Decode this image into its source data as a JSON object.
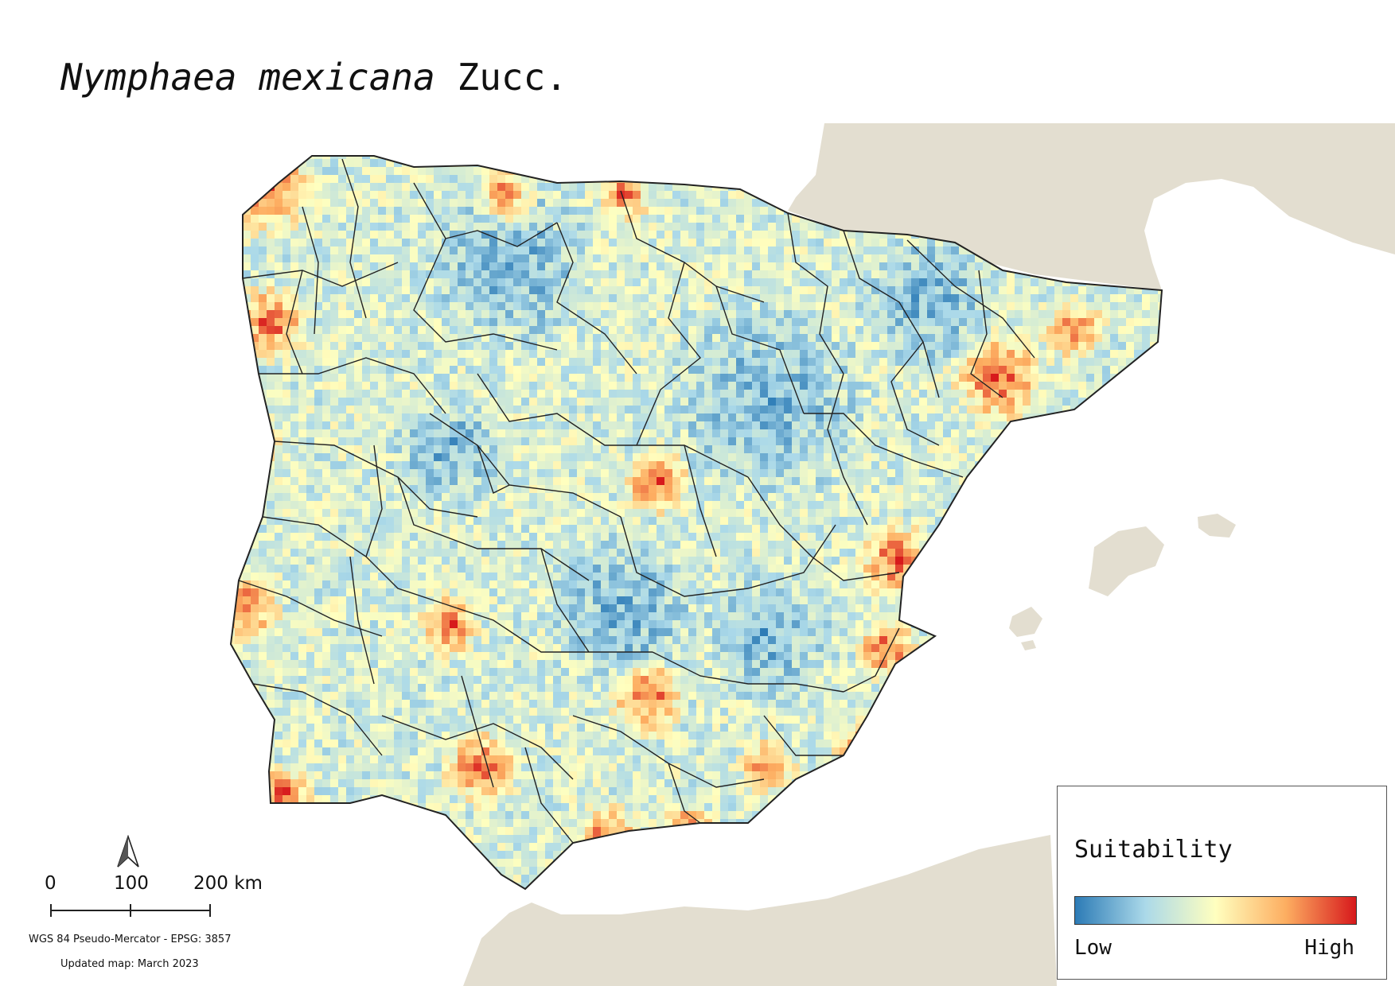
{
  "title": {
    "species": "Nymphaea mexicana",
    "author": "Zucc."
  },
  "legend": {
    "title": "Suitability",
    "low_label": "Low",
    "high_label": "High",
    "ramp_colors": [
      "#2c7bb6",
      "#abd9e9",
      "#ffffbf",
      "#fdae61",
      "#d7191c"
    ]
  },
  "scale": {
    "ticks": [
      "0",
      "100",
      "200 km"
    ]
  },
  "footer": {
    "crs": "WGS 84 Pseudo-Mercator  - EPSG: 3857",
    "updated": "Updated map: March 2023"
  },
  "colors": {
    "land": "#e3ded0",
    "sea": "#ffffff",
    "boundaries": "#222222"
  }
}
